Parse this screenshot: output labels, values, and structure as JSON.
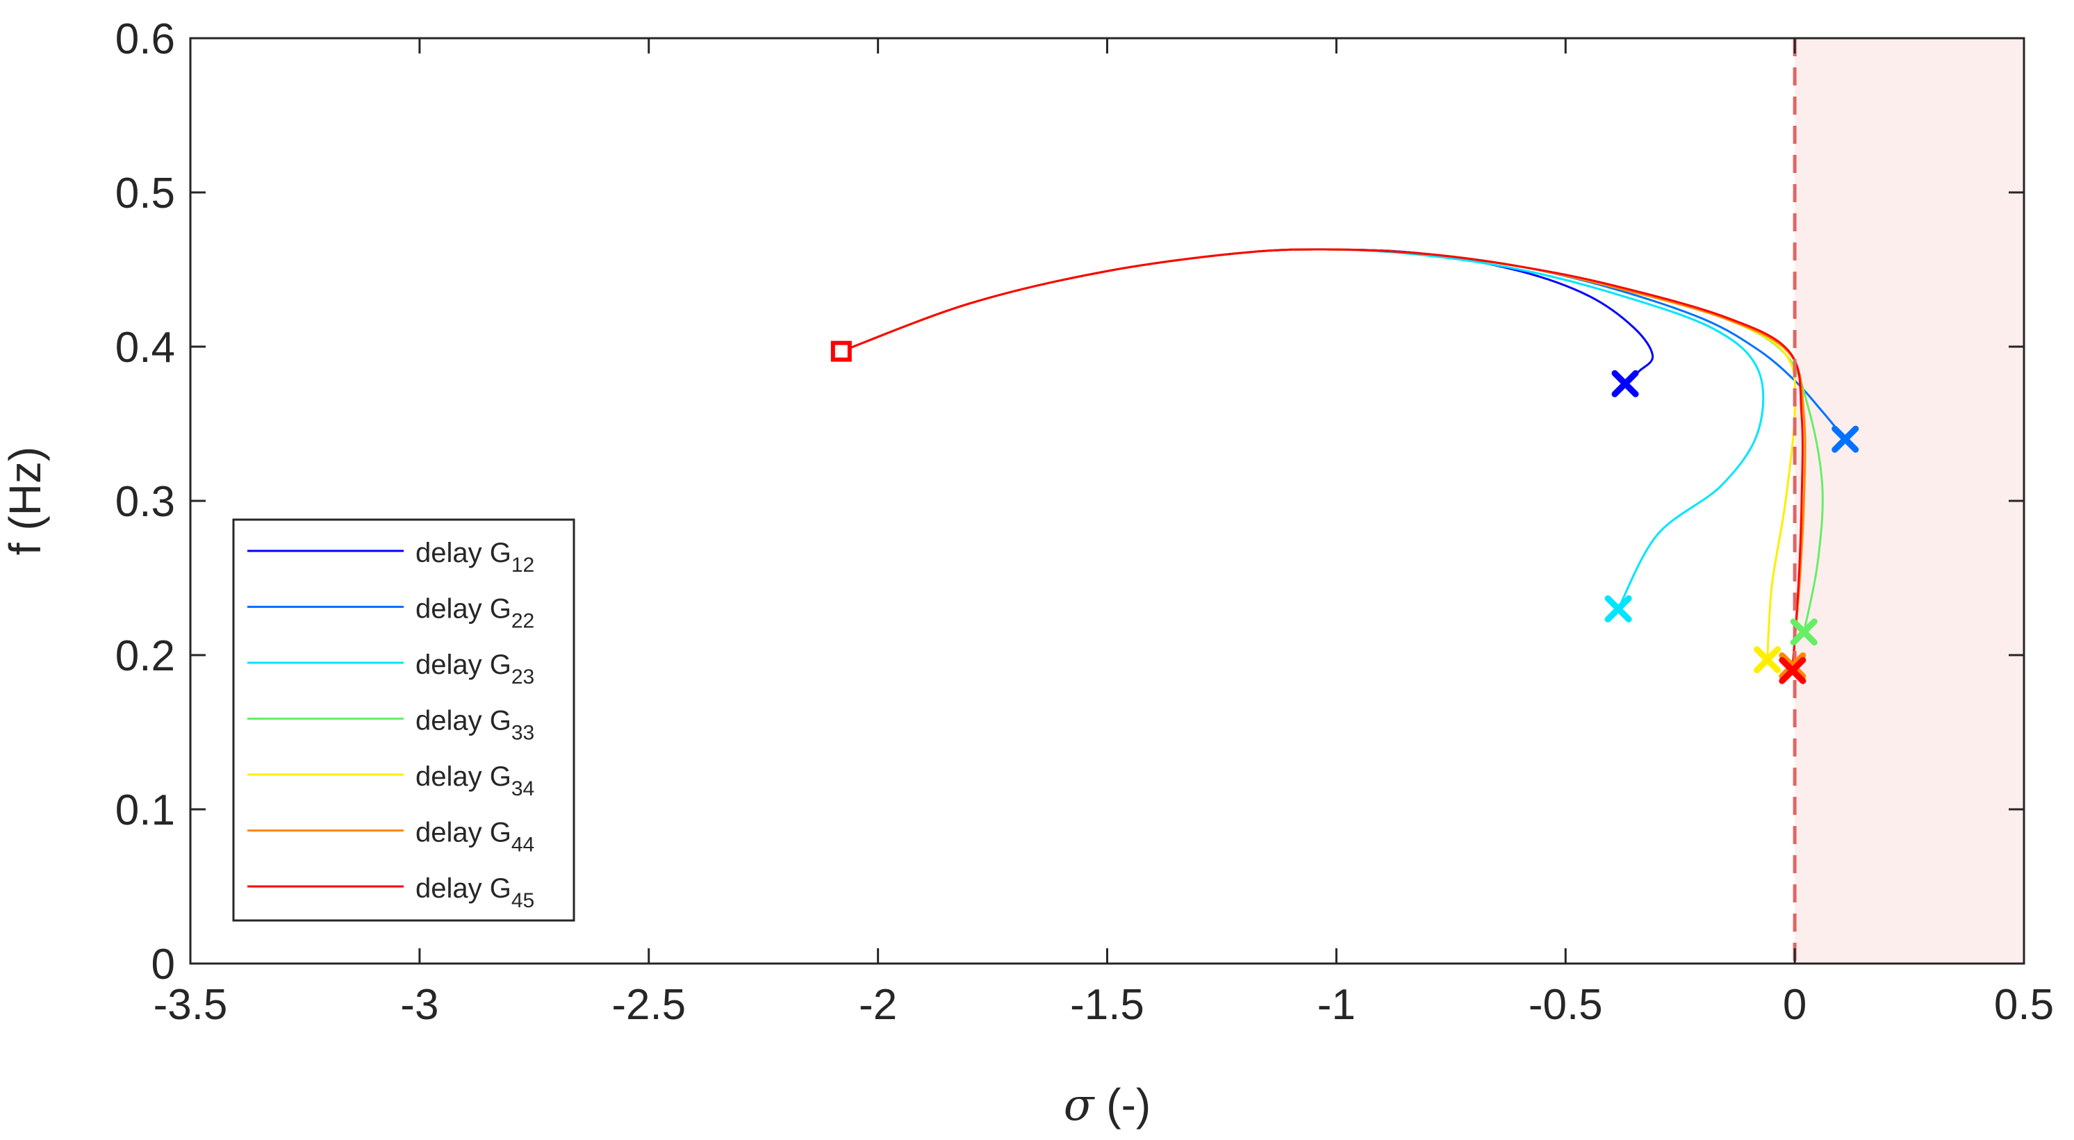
{
  "chart_data": {
    "type": "line",
    "title": "",
    "xlabel_symbol": "σ",
    "xlabel_unit": " (-)",
    "ylabel": "f (Hz)",
    "xlim": [
      -3.5,
      0.5
    ],
    "ylim": [
      0,
      0.6
    ],
    "x_ticks": [
      -3.5,
      -3,
      -2.5,
      -2,
      -1.5,
      -1,
      -0.5,
      0,
      0.5
    ],
    "x_tick_labels": [
      "-3.5",
      "-3",
      "-2.5",
      "-2",
      "-1.5",
      "-1",
      "-0.5",
      "0",
      "0.5"
    ],
    "y_ticks": [
      0,
      0.1,
      0.2,
      0.3,
      0.4,
      0.5,
      0.6
    ],
    "y_tick_labels": [
      "0",
      "0.1",
      "0.2",
      "0.3",
      "0.4",
      "0.5",
      "0.6"
    ],
    "grid": false,
    "legend_position": "lower-left",
    "stability_boundary_x": 0,
    "unstable_region": [
      0,
      0.5
    ],
    "colors": {
      "boundary_line": "#e06666",
      "unstable_fill": "#fdeeee",
      "axis": "#262626"
    },
    "start_point": {
      "x": -2.08,
      "y": 0.397,
      "color": "#ff0000"
    },
    "series": [
      {
        "name_prefix": "delay G",
        "name_sub": "12",
        "color": "#0000ff",
        "x": [
          -2.08,
          -1.8,
          -1.5,
          -1.2,
          -1.0,
          -0.8,
          -0.6,
          -0.45,
          -0.35,
          -0.31,
          -0.34,
          -0.37
        ],
        "y": [
          0.397,
          0.428,
          0.449,
          0.461,
          0.463,
          0.46,
          0.449,
          0.433,
          0.412,
          0.394,
          0.384,
          0.376
        ]
      },
      {
        "name_prefix": "delay G",
        "name_sub": "22",
        "color": "#0072ff",
        "x": [
          -2.08,
          -1.8,
          -1.5,
          -1.2,
          -1.0,
          -0.8,
          -0.6,
          -0.4,
          -0.2,
          -0.08,
          0.0,
          0.06,
          0.11
        ],
        "y": [
          0.397,
          0.428,
          0.449,
          0.461,
          0.463,
          0.46,
          0.452,
          0.438,
          0.418,
          0.398,
          0.378,
          0.358,
          0.34
        ]
      },
      {
        "name_prefix": "delay G",
        "name_sub": "23",
        "color": "#00e5ff",
        "x": [
          -2.08,
          -1.8,
          -1.5,
          -1.2,
          -1.0,
          -0.8,
          -0.6,
          -0.4,
          -0.18,
          -0.08,
          -0.08,
          -0.16,
          -0.3,
          -0.385
        ],
        "y": [
          0.397,
          0.428,
          0.449,
          0.461,
          0.463,
          0.459,
          0.45,
          0.435,
          0.412,
          0.385,
          0.345,
          0.31,
          0.278,
          0.23
        ]
      },
      {
        "name_prefix": "delay G",
        "name_sub": "33",
        "color": "#66ee66",
        "x": [
          -2.08,
          -1.8,
          -1.5,
          -1.2,
          -1.0,
          -0.8,
          -0.6,
          -0.4,
          -0.15,
          -0.02,
          0.03,
          0.06,
          0.05,
          0.02
        ],
        "y": [
          0.397,
          0.428,
          0.449,
          0.461,
          0.463,
          0.46,
          0.452,
          0.439,
          0.418,
          0.395,
          0.36,
          0.31,
          0.26,
          0.215
        ]
      },
      {
        "name_prefix": "delay G",
        "name_sub": "34",
        "color": "#ffee00",
        "x": [
          -2.08,
          -1.8,
          -1.5,
          -1.2,
          -1.0,
          -0.8,
          -0.6,
          -0.4,
          -0.15,
          -0.02,
          0.0,
          -0.02,
          -0.05,
          -0.06
        ],
        "y": [
          0.397,
          0.428,
          0.449,
          0.461,
          0.463,
          0.46,
          0.452,
          0.439,
          0.418,
          0.395,
          0.36,
          0.3,
          0.245,
          0.197
        ]
      },
      {
        "name_prefix": "delay G",
        "name_sub": "44",
        "color": "#ff8800",
        "x": [
          -2.08,
          -1.8,
          -1.5,
          -1.2,
          -1.0,
          -0.8,
          -0.6,
          -0.4,
          -0.15,
          -0.01,
          0.02,
          0.02,
          0.01,
          -0.005
        ],
        "y": [
          0.397,
          0.428,
          0.449,
          0.461,
          0.463,
          0.46,
          0.452,
          0.439,
          0.418,
          0.395,
          0.355,
          0.3,
          0.245,
          0.193
        ]
      },
      {
        "name_prefix": "delay G",
        "name_sub": "45",
        "color": "#ff0000",
        "x": [
          -2.08,
          -1.8,
          -1.5,
          -1.2,
          -1.0,
          -0.8,
          -0.6,
          -0.4,
          -0.15,
          -0.01,
          0.015,
          0.015,
          0.008,
          -0.005
        ],
        "y": [
          0.397,
          0.428,
          0.449,
          0.461,
          0.463,
          0.46,
          0.452,
          0.44,
          0.419,
          0.396,
          0.355,
          0.3,
          0.245,
          0.19
        ]
      }
    ]
  }
}
